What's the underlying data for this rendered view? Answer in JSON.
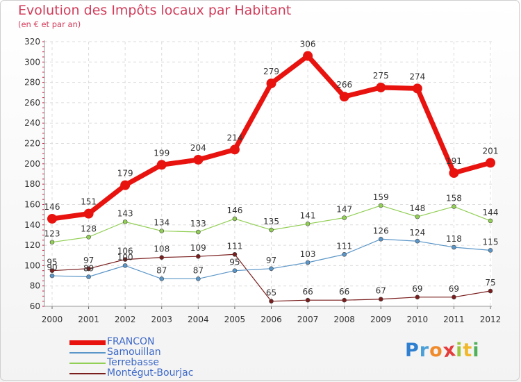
{
  "chart_data": {
    "type": "line",
    "title": "Evolution des Impôts locaux par Habitant",
    "subtitle": "(en € et par an)",
    "x": [
      "2000",
      "2001",
      "2002",
      "2003",
      "2004",
      "2005",
      "2006",
      "2007",
      "2008",
      "2009",
      "2010",
      "2011",
      "2012"
    ],
    "ylim": [
      60,
      320
    ],
    "yticks": [
      60,
      80,
      100,
      120,
      140,
      160,
      180,
      200,
      220,
      240,
      260,
      280,
      300,
      320
    ],
    "series": [
      {
        "name": "FRANCON",
        "color": "#e8130f",
        "values": [
          146,
          151,
          179,
          199,
          204,
          214,
          279,
          306,
          266,
          275,
          274,
          191,
          201
        ]
      },
      {
        "name": "Samouillan",
        "color": "#5b96c8",
        "values": [
          90,
          89,
          100,
          87,
          87,
          95,
          97,
          103,
          111,
          126,
          124,
          118,
          115
        ]
      },
      {
        "name": "Terrebasse",
        "color": "#92cf55",
        "values": [
          123,
          128,
          143,
          134,
          133,
          146,
          135,
          141,
          147,
          159,
          148,
          158,
          144
        ]
      },
      {
        "name": "Montégut-Bourjac",
        "color": "#7a1e1e",
        "values": [
          95,
          97,
          106,
          108,
          109,
          111,
          65,
          66,
          66,
          67,
          69,
          69,
          75
        ]
      }
    ]
  },
  "brand": {
    "letters": [
      "P",
      "r",
      "o",
      "x",
      "i",
      "t",
      "i"
    ]
  }
}
